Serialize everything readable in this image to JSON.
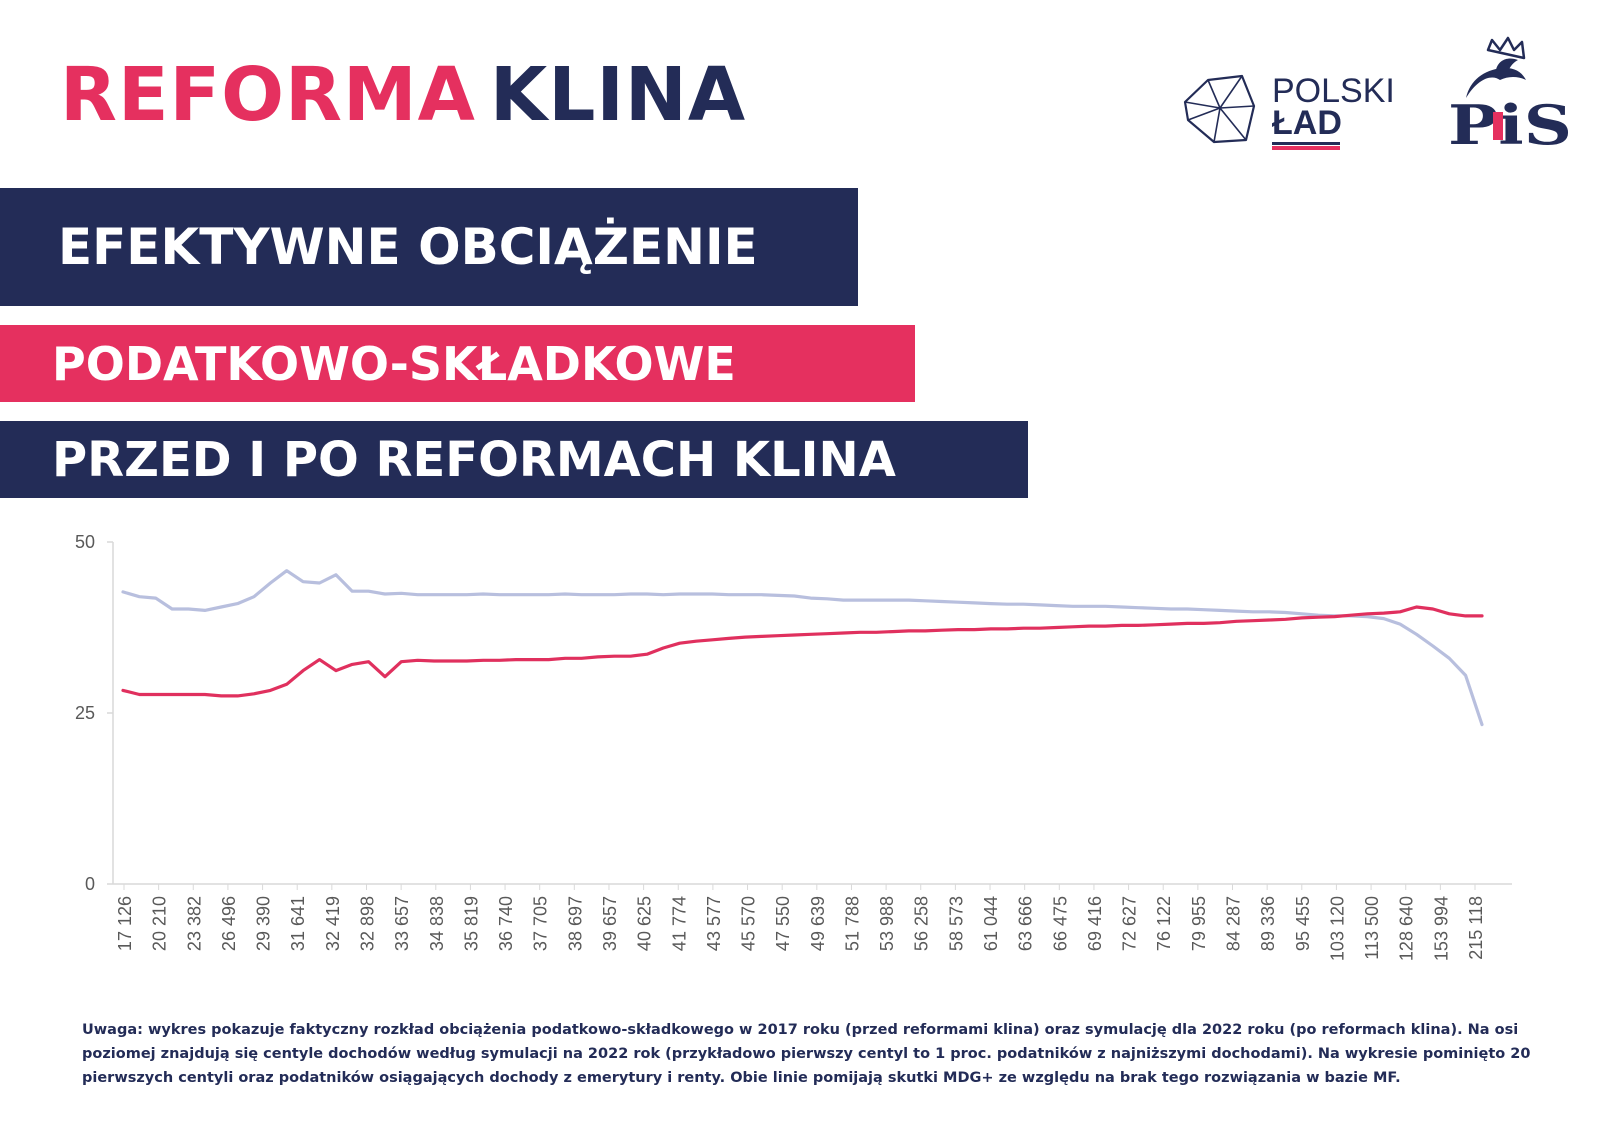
{
  "header": {
    "title_word1": "REFORMA",
    "title_word2": "KLINA"
  },
  "subtitle": {
    "line1": "EFEKTYWNE OBCIĄŻENIE",
    "line2": "PODATKOWO-SKŁADKOWE",
    "line3": "PRZED I PO REFORMACH KLINA"
  },
  "logos": {
    "polski_lad": {
      "line1": "POLSKI",
      "line2": "ŁAD"
    },
    "pis": "PiS"
  },
  "colors": {
    "navy": "#232c57",
    "pink": "#e5305f",
    "series_before": "#b8bfde",
    "series_after": "#e0305e"
  },
  "chart_data": {
    "type": "line",
    "title": "",
    "xlabel": "",
    "ylabel": "",
    "ylim": [
      0,
      50
    ],
    "yticks": [
      0,
      25,
      50
    ],
    "grid": false,
    "legend": "none",
    "x_tick_labels": [
      "17 126",
      "20 210",
      "23 382",
      "26 496",
      "29 390",
      "31 641",
      "32 419",
      "32 898",
      "33 657",
      "34 838",
      "35 819",
      "36 740",
      "37 705",
      "38 697",
      "39 657",
      "40 625",
      "41 774",
      "43 577",
      "45 570",
      "47 550",
      "49 639",
      "51 788",
      "53 988",
      "56 258",
      "58 573",
      "61 044",
      "63 666",
      "66 475",
      "69 416",
      "72 627",
      "76 122",
      "79 955",
      "84 287",
      "89 336",
      "95 455",
      "103 120",
      "113 500",
      "128 640",
      "153 994",
      "215 118"
    ],
    "series": [
      {
        "values": [
          42.7,
          42,
          41.8,
          40.2,
          40.2,
          40,
          40.5,
          41,
          42,
          44,
          45.8,
          44.2,
          44,
          45.2,
          42.8,
          42.8,
          42.4,
          42.5,
          42.3,
          42.3,
          42.3,
          42.3,
          42.4,
          42.3,
          42.3,
          42.3,
          42.3,
          42.4,
          42.3,
          42.3,
          42.3,
          42.4,
          42.4,
          42.3,
          42.4,
          42.4,
          42.4,
          42.3,
          42.3,
          42.3,
          42.2,
          42.1,
          41.8,
          41.7,
          41.5,
          41.5,
          41.5,
          41.5,
          41.5,
          41.4,
          41.3,
          41.2,
          41.1,
          41,
          40.9,
          40.9,
          40.8,
          40.7,
          40.6,
          40.6,
          40.6,
          40.5,
          40.4,
          40.3,
          40.2,
          40.2,
          40.1,
          40,
          39.9,
          39.8,
          39.8,
          39.7,
          39.5,
          39.3,
          39.2,
          39.2,
          39.1,
          38.8,
          38,
          36.5,
          34.8,
          33,
          30.5,
          23.3
        ]
      },
      {
        "values": [
          28.3,
          27.7,
          27.7,
          27.7,
          27.7,
          27.7,
          27.5,
          27.5,
          27.8,
          28.3,
          29.2,
          31.2,
          32.8,
          31.2,
          32.1,
          32.5,
          30.3,
          32.5,
          32.7,
          32.6,
          32.6,
          32.6,
          32.7,
          32.7,
          32.8,
          32.8,
          32.8,
          33,
          33,
          33.2,
          33.3,
          33.3,
          33.6,
          34.5,
          35.2,
          35.5,
          35.7,
          35.9,
          36.1,
          36.2,
          36.3,
          36.4,
          36.5,
          36.6,
          36.7,
          36.8,
          36.8,
          36.9,
          37,
          37,
          37.1,
          37.2,
          37.2,
          37.3,
          37.3,
          37.4,
          37.4,
          37.5,
          37.6,
          37.7,
          37.7,
          37.8,
          37.8,
          37.9,
          38,
          38.1,
          38.1,
          38.2,
          38.4,
          38.5,
          38.6,
          38.7,
          38.9,
          39,
          39.1,
          39.3,
          39.5,
          39.6,
          39.8,
          40.5,
          40.2,
          39.5,
          39.2,
          39.2
        ]
      }
    ]
  },
  "note": "Uwaga: wykres pokazuje faktyczny rozkład obciążenia podatkowo-składkowego w 2017 roku (przed reformami klina) oraz symulację dla 2022 roku (po reformach klina). Na osi poziomej znajdują się centyle dochodów według symulacji na 2022 rok (przykładowo pierwszy centyl to 1 proc. podatników z najniższymi dochodami). Na wykresie pominięto 20 pierwszych centyli oraz podatników osiągających dochody z emerytury i renty. Obie linie pomijają skutki MDG+ ze względu na brak tego rozwiązania w bazie MF."
}
